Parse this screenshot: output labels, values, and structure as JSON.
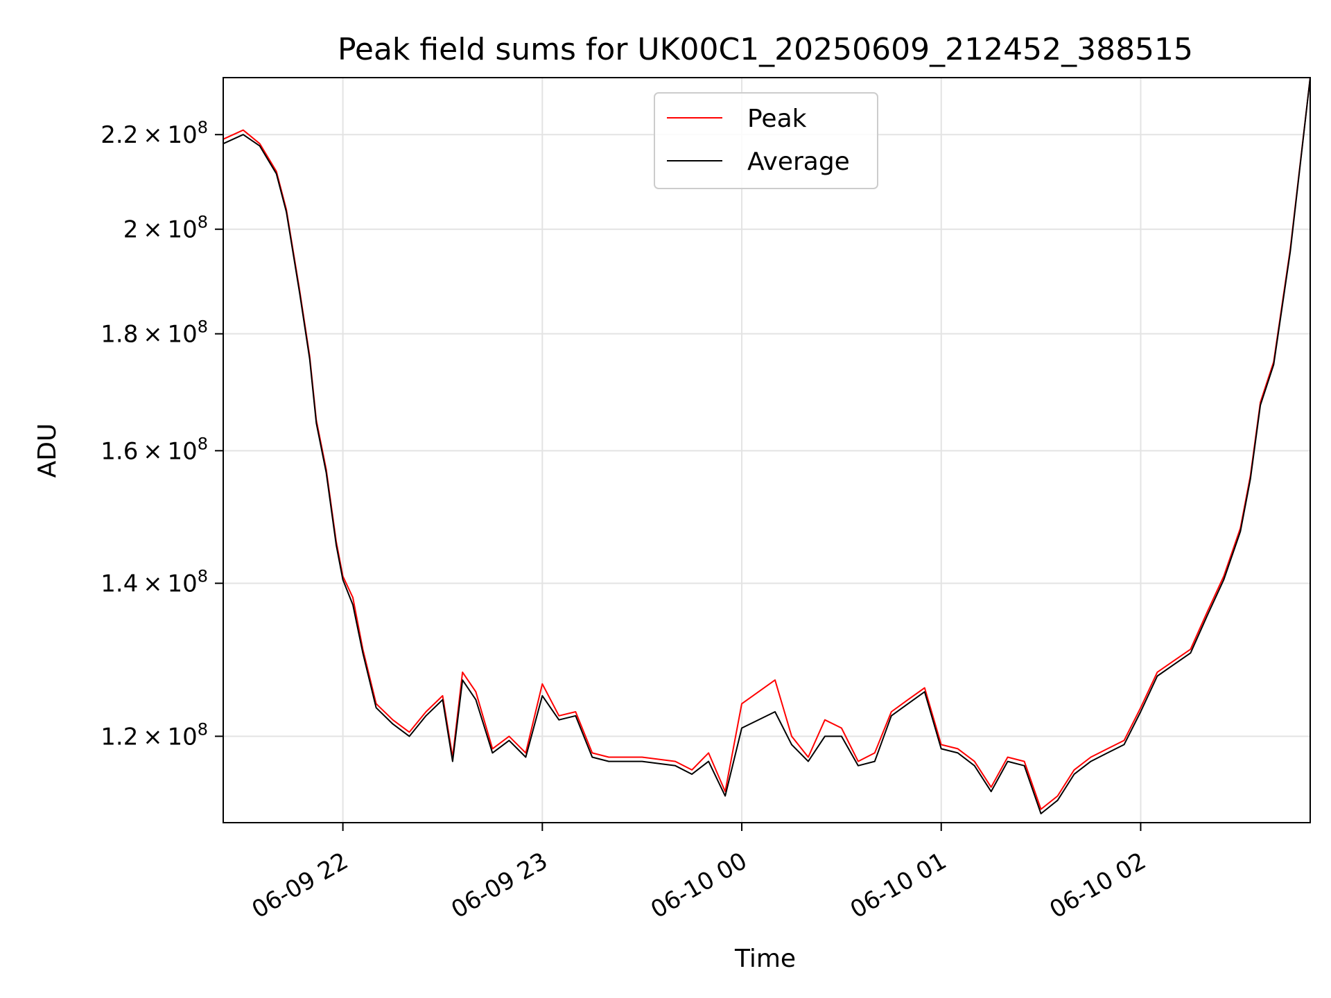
{
  "chart_data": {
    "type": "line",
    "title": "Peak field sums for UK00C1_20250609_212452_388515",
    "xlabel": "Time",
    "ylabel": "ADU",
    "y_scale": "log",
    "grid": true,
    "legend_position": "top-center",
    "xlim": [
      "2025-06-09 21:24",
      "2025-06-10 02:51"
    ],
    "ylim": [
      110000000,
      233000000
    ],
    "x_ticks": [
      {
        "value": "2025-06-09 22:00",
        "label": "06-09 22"
      },
      {
        "value": "2025-06-09 23:00",
        "label": "06-09 23"
      },
      {
        "value": "2025-06-10 00:00",
        "label": "06-10 00"
      },
      {
        "value": "2025-06-10 01:00",
        "label": "06-10 01"
      },
      {
        "value": "2025-06-10 02:00",
        "label": "06-10 02"
      }
    ],
    "y_ticks": [
      {
        "value": 120000000,
        "mantissa": "1.2",
        "exponent": "8"
      },
      {
        "value": 140000000,
        "mantissa": "1.4",
        "exponent": "8"
      },
      {
        "value": 160000000,
        "mantissa": "1.6",
        "exponent": "8"
      },
      {
        "value": 180000000,
        "mantissa": "1.8",
        "exponent": "8"
      },
      {
        "value": 200000000,
        "mantissa": "2",
        "exponent": "8"
      },
      {
        "value": 220000000,
        "mantissa": "2.2",
        "exponent": "8"
      }
    ],
    "x": [
      "2025-06-09 21:24",
      "2025-06-09 21:30",
      "2025-06-09 21:35",
      "2025-06-09 21:40",
      "2025-06-09 21:43",
      "2025-06-09 21:47",
      "2025-06-09 21:50",
      "2025-06-09 21:52",
      "2025-06-09 21:55",
      "2025-06-09 21:58",
      "2025-06-09 22:00",
      "2025-06-09 22:03",
      "2025-06-09 22:06",
      "2025-06-09 22:10",
      "2025-06-09 22:15",
      "2025-06-09 22:20",
      "2025-06-09 22:25",
      "2025-06-09 22:30",
      "2025-06-09 22:33",
      "2025-06-09 22:36",
      "2025-06-09 22:40",
      "2025-06-09 22:45",
      "2025-06-09 22:50",
      "2025-06-09 22:55",
      "2025-06-09 23:00",
      "2025-06-09 23:05",
      "2025-06-09 23:10",
      "2025-06-09 23:15",
      "2025-06-09 23:20",
      "2025-06-09 23:30",
      "2025-06-09 23:40",
      "2025-06-09 23:45",
      "2025-06-09 23:50",
      "2025-06-09 23:55",
      "2025-06-10 00:00",
      "2025-06-10 00:10",
      "2025-06-10 00:15",
      "2025-06-10 00:20",
      "2025-06-10 00:25",
      "2025-06-10 00:30",
      "2025-06-10 00:35",
      "2025-06-10 00:40",
      "2025-06-10 00:45",
      "2025-06-10 00:50",
      "2025-06-10 00:55",
      "2025-06-10 01:00",
      "2025-06-10 01:05",
      "2025-06-10 01:10",
      "2025-06-10 01:15",
      "2025-06-10 01:20",
      "2025-06-10 01:25",
      "2025-06-10 01:30",
      "2025-06-10 01:35",
      "2025-06-10 01:40",
      "2025-06-10 01:45",
      "2025-06-10 01:50",
      "2025-06-10 01:55",
      "2025-06-10 02:00",
      "2025-06-10 02:05",
      "2025-06-10 02:10",
      "2025-06-10 02:15",
      "2025-06-10 02:20",
      "2025-06-10 02:25",
      "2025-06-10 02:30",
      "2025-06-10 02:33",
      "2025-06-10 02:36",
      "2025-06-10 02:40",
      "2025-06-10 02:45",
      "2025-06-10 02:51"
    ],
    "series": [
      {
        "name": "Peak",
        "color": "#ff0000",
        "values": [
          219000000,
          221000000,
          218000000,
          212000000,
          204000000,
          188000000,
          176000000,
          165000000,
          157000000,
          146000000,
          141000000,
          138000000,
          131000000,
          124000000,
          122000000,
          120500000,
          123000000,
          125000000,
          117500000,
          128000000,
          125500000,
          118500000,
          120000000,
          118000000,
          126500000,
          122500000,
          123000000,
          118000000,
          117500000,
          117500000,
          117000000,
          116000000,
          118000000,
          113500000,
          124000000,
          127000000,
          120000000,
          117500000,
          122000000,
          121000000,
          117000000,
          118000000,
          123000000,
          124500000,
          126000000,
          119000000,
          118500000,
          117000000,
          114000000,
          117500000,
          117000000,
          111500000,
          113000000,
          116000000,
          117500000,
          118500000,
          119500000,
          123500000,
          128000000,
          129500000,
          131000000,
          136000000,
          141000000,
          148000000,
          156000000,
          168000000,
          175000000,
          196000000,
          233000000
        ]
      },
      {
        "name": "Average",
        "color": "#000000",
        "values": [
          218000000,
          220000000,
          217500000,
          211500000,
          203500000,
          187500000,
          175500000,
          164500000,
          156500000,
          145500000,
          140500000,
          137000000,
          130500000,
          123500000,
          121500000,
          120000000,
          122500000,
          124500000,
          117000000,
          127000000,
          124500000,
          118000000,
          119500000,
          117500000,
          125000000,
          122000000,
          122500000,
          117500000,
          117000000,
          117000000,
          116500000,
          115500000,
          117000000,
          113000000,
          121000000,
          123000000,
          119000000,
          117000000,
          120000000,
          120000000,
          116500000,
          117000000,
          122500000,
          124000000,
          125500000,
          118500000,
          118000000,
          116500000,
          113500000,
          117000000,
          116500000,
          111000000,
          112500000,
          115500000,
          117000000,
          118000000,
          119000000,
          123000000,
          127500000,
          129000000,
          130500000,
          135500000,
          140500000,
          147500000,
          155500000,
          167500000,
          174500000,
          195500000,
          233000000
        ]
      }
    ]
  }
}
